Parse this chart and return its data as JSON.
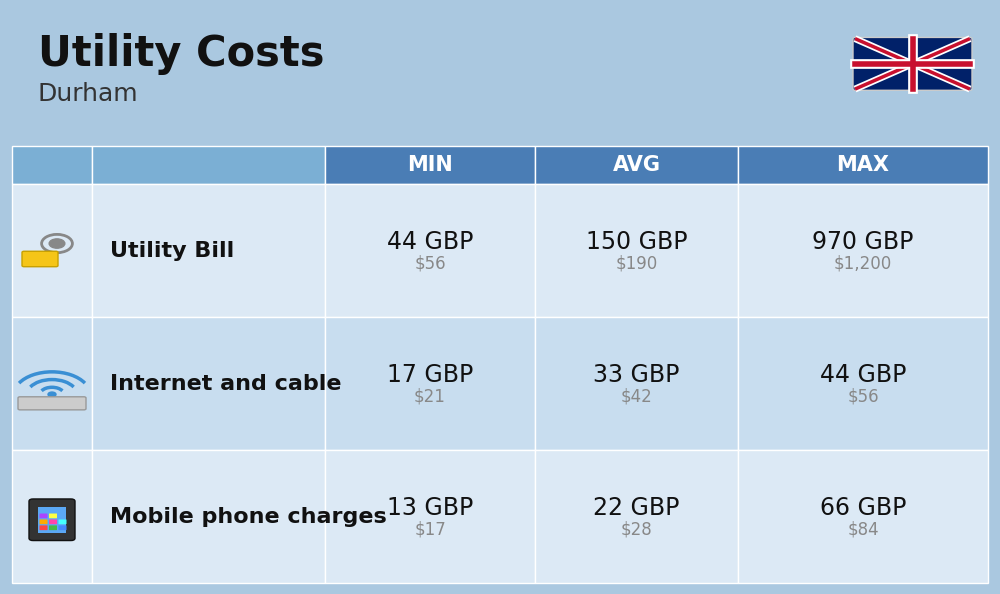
{
  "title": "Utility Costs",
  "subtitle": "Durham",
  "background_color": "#aac8e0",
  "header_bg_color": "#4a7db5",
  "header_text_color": "#ffffff",
  "row_bg_color_1": "#dce9f5",
  "row_bg_color_2": "#c8ddef",
  "col_headers": [
    "MIN",
    "AVG",
    "MAX"
  ],
  "rows": [
    {
      "label": "Utility Bill",
      "min_gbp": "44 GBP",
      "min_usd": "$56",
      "avg_gbp": "150 GBP",
      "avg_usd": "$190",
      "max_gbp": "970 GBP",
      "max_usd": "$1,200"
    },
    {
      "label": "Internet and cable",
      "min_gbp": "17 GBP",
      "min_usd": "$21",
      "avg_gbp": "33 GBP",
      "avg_usd": "$42",
      "max_gbp": "44 GBP",
      "max_usd": "$56"
    },
    {
      "label": "Mobile phone charges",
      "min_gbp": "13 GBP",
      "min_usd": "$17",
      "avg_gbp": "22 GBP",
      "avg_usd": "$28",
      "max_gbp": "66 GBP",
      "max_usd": "$84"
    }
  ],
  "title_fontsize": 30,
  "subtitle_fontsize": 18,
  "header_fontsize": 15,
  "cell_fontsize_large": 17,
  "cell_fontsize_small": 12,
  "label_fontsize": 16
}
